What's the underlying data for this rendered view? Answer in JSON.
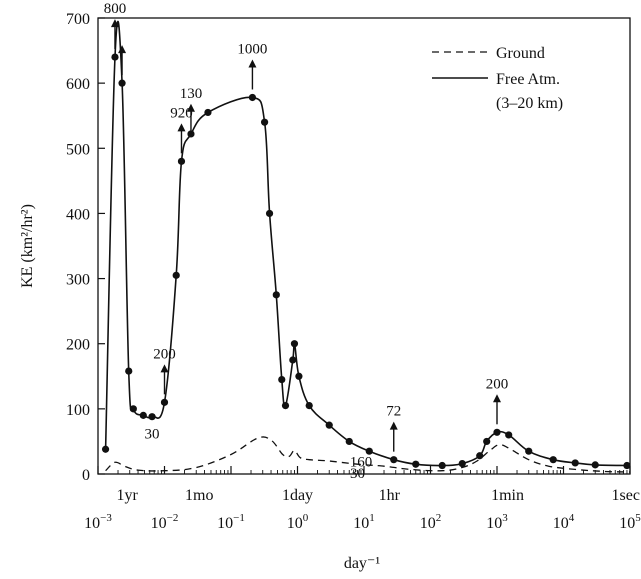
{
  "chart_data": {
    "type": "line",
    "xscale": "log",
    "xlim": [
      0.001,
      100000
    ],
    "ylim": [
      0,
      700
    ],
    "ylabel": "KE (km²/hr²)",
    "xlabel": "day⁻¹",
    "yticks": [
      "0",
      "100",
      "200",
      "300",
      "400",
      "500",
      "600",
      "700"
    ],
    "xticks": [
      {
        "base": "10",
        "exp": "−3",
        "x": 0.001
      },
      {
        "base": "10",
        "exp": "−2",
        "x": 0.01
      },
      {
        "base": "10",
        "exp": "−1",
        "x": 0.1
      },
      {
        "base": "10",
        "exp": "0",
        "x": 1
      },
      {
        "base": "10",
        "exp": "1",
        "x": 10
      },
      {
        "base": "10",
        "exp": "2",
        "x": 100
      },
      {
        "base": "10",
        "exp": "3",
        "x": 1000
      },
      {
        "base": "10",
        "exp": "4",
        "x": 10000
      },
      {
        "base": "10",
        "exp": "5",
        "x": 100000
      }
    ],
    "period_labels": [
      {
        "text": "1yr",
        "x": 0.00274
      },
      {
        "text": "1mo",
        "x": 0.0333
      },
      {
        "text": "1day",
        "x": 1
      },
      {
        "text": "1hr",
        "x": 24
      },
      {
        "text": "1min",
        "x": 1440
      },
      {
        "text": "1sec",
        "x": 86400
      }
    ],
    "legend": {
      "position": "top-right",
      "entries": [
        "Ground",
        "Free Atm.",
        "(3–20 km)"
      ]
    },
    "series": [
      {
        "name": "Free Atm. (3–20 km)",
        "style": "solid",
        "markers": true,
        "points": [
          [
            0.0013,
            38
          ],
          [
            0.0018,
            640
          ],
          [
            0.0023,
            600
          ],
          [
            0.0029,
            158
          ],
          [
            0.0034,
            100
          ],
          [
            0.0048,
            90
          ],
          [
            0.0065,
            88
          ],
          [
            0.01,
            110
          ],
          [
            0.015,
            305
          ],
          [
            0.018,
            480
          ],
          [
            0.025,
            522
          ],
          [
            0.045,
            555
          ],
          [
            0.21,
            578
          ],
          [
            0.32,
            540
          ],
          [
            0.38,
            400
          ],
          [
            0.48,
            275
          ],
          [
            0.58,
            145
          ],
          [
            0.66,
            105
          ],
          [
            0.85,
            175
          ],
          [
            0.9,
            200
          ],
          [
            1.05,
            150
          ],
          [
            1.5,
            105
          ],
          [
            3,
            75
          ],
          [
            6,
            50
          ],
          [
            12,
            35
          ],
          [
            28,
            22
          ],
          [
            60,
            15
          ],
          [
            150,
            13
          ],
          [
            300,
            16
          ],
          [
            550,
            28
          ],
          [
            700,
            50
          ],
          [
            1000,
            64
          ],
          [
            1500,
            60
          ],
          [
            3000,
            35
          ],
          [
            7000,
            22
          ],
          [
            15000,
            17
          ],
          [
            30000,
            14
          ],
          [
            90000,
            13
          ]
        ]
      },
      {
        "name": "Ground",
        "style": "dashed",
        "markers": false,
        "points": [
          [
            0.0013,
            5
          ],
          [
            0.0018,
            18
          ],
          [
            0.0025,
            12
          ],
          [
            0.004,
            6
          ],
          [
            0.01,
            5
          ],
          [
            0.03,
            10
          ],
          [
            0.1,
            30
          ],
          [
            0.25,
            55
          ],
          [
            0.4,
            52
          ],
          [
            0.6,
            30
          ],
          [
            0.75,
            27
          ],
          [
            0.9,
            36
          ],
          [
            1.1,
            25
          ],
          [
            1.5,
            22
          ],
          [
            3,
            20
          ],
          [
            8,
            15
          ],
          [
            20,
            12
          ],
          [
            50,
            7
          ],
          [
            150,
            5
          ],
          [
            300,
            10
          ],
          [
            500,
            20
          ],
          [
            800,
            37
          ],
          [
            1100,
            45
          ],
          [
            1600,
            38
          ],
          [
            3000,
            22
          ],
          [
            6000,
            12
          ],
          [
            15000,
            7
          ],
          [
            40000,
            4
          ],
          [
            100000,
            3
          ]
        ]
      }
    ],
    "annotations": [
      {
        "text": "800",
        "x": 0.0018,
        "y": 640,
        "arrow": true
      },
      {
        "text": "",
        "x": 0.0023,
        "y": 600,
        "arrow": true
      },
      {
        "text": "200",
        "x": 0.01,
        "y": 110,
        "arrow": true
      },
      {
        "text": "30",
        "x": 0.0065,
        "y": 88,
        "arrow": false
      },
      {
        "text": "920",
        "x": 0.018,
        "y": 480,
        "arrow": true
      },
      {
        "text": "130",
        "x": 0.025,
        "y": 510,
        "arrow": true
      },
      {
        "text": "1000",
        "x": 0.21,
        "y": 578,
        "arrow": true
      },
      {
        "text": "160",
        "x": 9,
        "y": 45,
        "arrow": false
      },
      {
        "text": "30",
        "x": 8,
        "y": 28,
        "arrow": false
      },
      {
        "text": "72",
        "x": 28,
        "y": 22,
        "arrow": true
      },
      {
        "text": "200",
        "x": 1000,
        "y": 64,
        "arrow": true
      }
    ]
  }
}
